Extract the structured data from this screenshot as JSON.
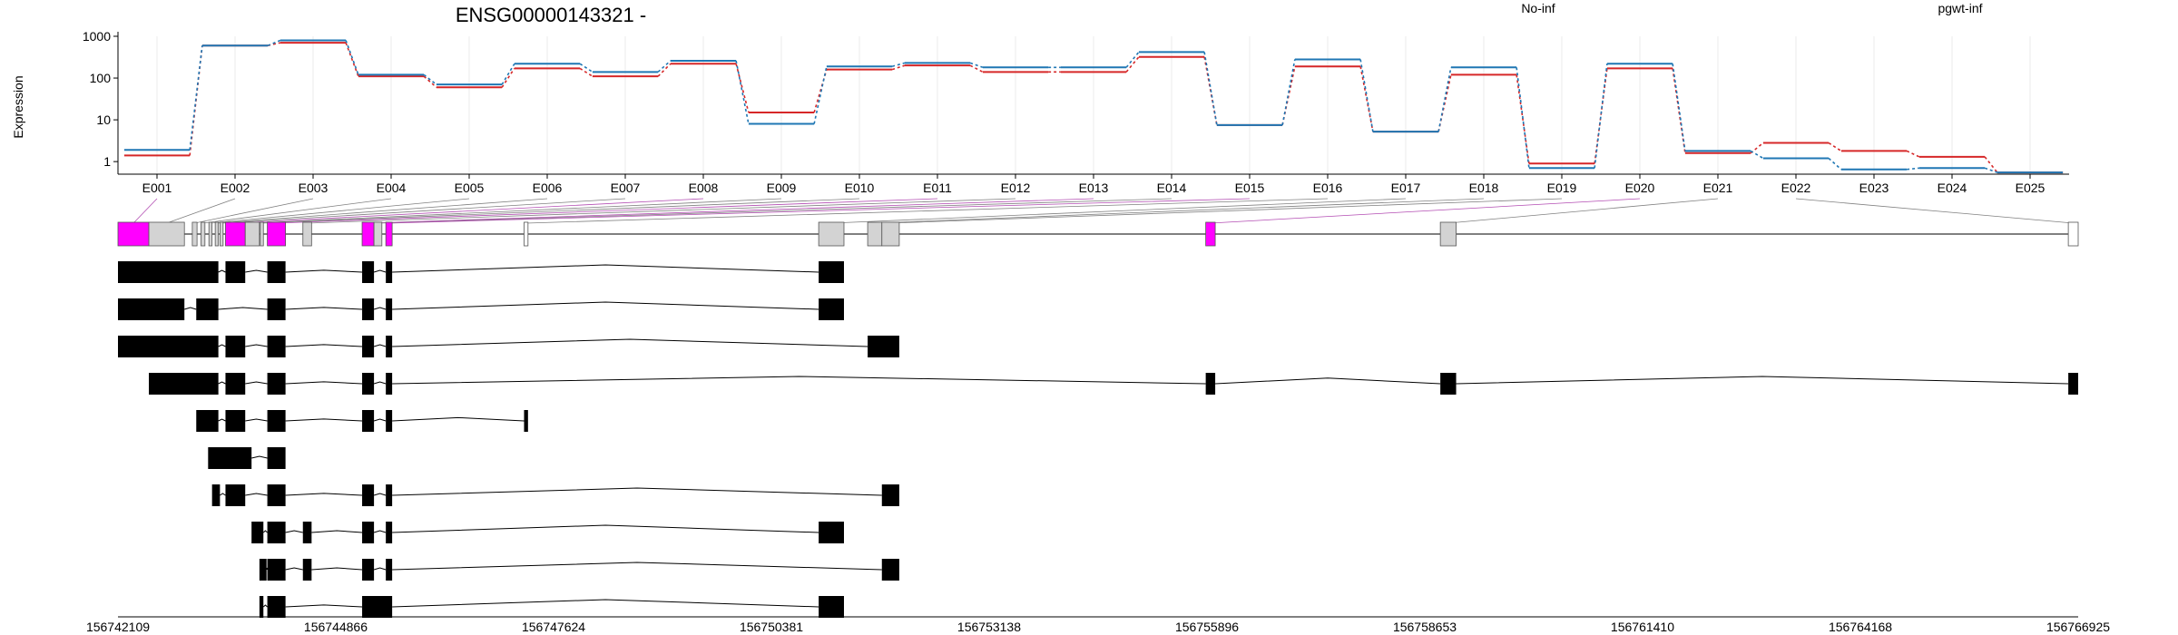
{
  "chart_data": {
    "type": "line",
    "title": "ENSG00000143321 -",
    "ylabel": "Expression",
    "yscale": "log",
    "ylim": [
      0.5,
      1000
    ],
    "yticks": [
      1,
      10,
      100,
      1000
    ],
    "ytick_labels": [
      "1",
      "10",
      "100",
      "1000"
    ],
    "categories": [
      "E001",
      "E002",
      "E003",
      "E004",
      "E005",
      "E006",
      "E007",
      "E008",
      "E009",
      "E010",
      "E011",
      "E012",
      "E013",
      "E014",
      "E015",
      "E016",
      "E017",
      "E018",
      "E019",
      "E020",
      "E021",
      "E022",
      "E023",
      "E024",
      "E025"
    ],
    "series": [
      {
        "name": "No-inf",
        "color": "#d62728",
        "values": [
          1.4,
          600,
          700,
          110,
          60,
          170,
          110,
          220,
          15,
          160,
          200,
          140,
          140,
          320,
          7.5,
          190,
          5.2,
          120,
          0.9,
          170,
          1.6,
          2.8,
          1.8,
          1.3,
          0.55
        ]
      },
      {
        "name": "pgwt-inf",
        "color": "#1f77b4",
        "values": [
          1.9,
          600,
          800,
          120,
          70,
          220,
          140,
          260,
          8,
          190,
          230,
          180,
          180,
          420,
          7.5,
          280,
          5.2,
          180,
          0.7,
          220,
          1.8,
          1.2,
          0.65,
          0.7,
          0.55
        ]
      }
    ],
    "exon_coords": [
      [
        156742109,
        156742500
      ],
      [
        156742500,
        156742950
      ],
      [
        156743050,
        156743110
      ],
      [
        156743160,
        156743210
      ],
      [
        156743260,
        156743300
      ],
      [
        156743340,
        156743380
      ],
      [
        156743400,
        156743440
      ],
      [
        156743470,
        156743720
      ],
      [
        156743720,
        156743900
      ],
      [
        156743910,
        156743950
      ],
      [
        156744000,
        156744230
      ],
      [
        156744450,
        156744560
      ],
      [
        156745200,
        156745350
      ],
      [
        156745350,
        156745450
      ],
      [
        156745500,
        156745580
      ],
      [
        156747250,
        156747300
      ],
      [
        156750980,
        156751300
      ],
      [
        156751600,
        156751780
      ],
      [
        156751780,
        156752000
      ],
      [
        156755880,
        156756000
      ],
      [
        156758850,
        156759050
      ],
      [
        156766800,
        156766925
      ]
    ],
    "exon_colors": [
      "#ff00ff",
      "#d3d3d3",
      "#d3d3d3",
      "#d3d3d3",
      "#d3d3d3",
      "#d3d3d3",
      "#d3d3d3",
      "#ff00ff",
      "#d3d3d3",
      "#d3d3d3",
      "#ff00ff",
      "#d3d3d3",
      "#ff00ff",
      "#d3d3d3",
      "#ff00ff",
      "#ffffff",
      "#d3d3d3",
      "#d3d3d3",
      "#d3d3d3",
      "#ff00ff",
      "#d3d3d3",
      "#ffffff"
    ],
    "transcripts": [
      [
        [
          156742109,
          156743380
        ],
        [
          156743470,
          156743720
        ],
        [
          156744000,
          156744230
        ],
        [
          156745200,
          156745350
        ],
        [
          156745500,
          156745580
        ],
        [
          156750980,
          156751300
        ]
      ],
      [
        [
          156742109,
          156742950
        ],
        [
          156743100,
          156743380
        ],
        [
          156744000,
          156744230
        ],
        [
          156745200,
          156745350
        ],
        [
          156745500,
          156745580
        ],
        [
          156750980,
          156751300
        ]
      ],
      [
        [
          156742109,
          156743380
        ],
        [
          156743470,
          156743720
        ],
        [
          156744000,
          156744230
        ],
        [
          156745200,
          156745350
        ],
        [
          156745500,
          156745580
        ],
        [
          156751600,
          156752000
        ]
      ],
      [
        [
          156742500,
          156743380
        ],
        [
          156743470,
          156743720
        ],
        [
          156744000,
          156744230
        ],
        [
          156745200,
          156745350
        ],
        [
          156745500,
          156745580
        ],
        [
          156755880,
          156756000
        ],
        [
          156758850,
          156759050
        ],
        [
          156766800,
          156766925
        ]
      ],
      [
        [
          156743100,
          156743380
        ],
        [
          156743470,
          156743720
        ],
        [
          156744000,
          156744230
        ],
        [
          156745200,
          156745350
        ],
        [
          156745500,
          156745580
        ],
        [
          156747250,
          156747300
        ]
      ],
      [
        [
          156743250,
          156743800
        ],
        [
          156744000,
          156744230
        ]
      ],
      [
        [
          156743300,
          156743400
        ],
        [
          156743470,
          156743720
        ],
        [
          156744000,
          156744230
        ],
        [
          156745200,
          156745350
        ],
        [
          156745500,
          156745580
        ],
        [
          156751780,
          156752000
        ]
      ],
      [
        [
          156743800,
          156743950
        ],
        [
          156744000,
          156744230
        ],
        [
          156744450,
          156744560
        ],
        [
          156745200,
          156745350
        ],
        [
          156745500,
          156745580
        ],
        [
          156750980,
          156751300
        ]
      ],
      [
        [
          156743900,
          156743990
        ],
        [
          156744000,
          156744230
        ],
        [
          156744450,
          156744560
        ],
        [
          156745200,
          156745350
        ],
        [
          156745500,
          156745580
        ],
        [
          156751780,
          156752000
        ]
      ],
      [
        [
          156743900,
          156743950
        ],
        [
          156744000,
          156744230
        ],
        [
          156745200,
          156745580
        ],
        [
          156750980,
          156751300
        ]
      ]
    ],
    "genomic_axis": {
      "range": [
        156742109,
        156766925
      ],
      "ticks": [
        156742109,
        156744866,
        156747624,
        156750381,
        156753138,
        156755896,
        156758653,
        156761410,
        156764168,
        156766925
      ],
      "tick_labels": [
        "156742109",
        "156744866",
        "156747624",
        "156750381",
        "156753138",
        "156755896",
        "156758653",
        "156761410",
        "156764168",
        "156766925"
      ]
    },
    "grid": true,
    "legend_position": "top"
  }
}
